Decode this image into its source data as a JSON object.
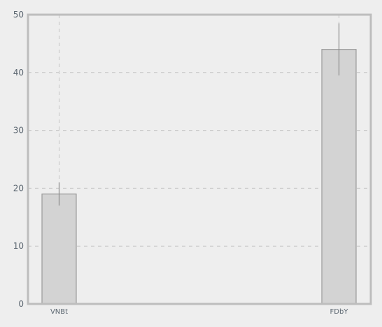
{
  "chart_data": {
    "type": "bar",
    "categories": [
      "VNBt",
      "FDbY"
    ],
    "values": [
      19,
      44
    ],
    "error": [
      [
        17,
        21
      ],
      [
        39.5,
        48.5
      ]
    ],
    "ylim": [
      0,
      50
    ],
    "yticks": [
      0,
      10,
      20,
      30,
      40,
      50
    ],
    "grid": true,
    "colors": {
      "bar_fill": "#d3d3d3",
      "bar_stroke": "#9a9a9a",
      "error": "#8a8a8a",
      "grid": "#c4c4c4",
      "frame": "#bdbdbd",
      "background": "#eeeeee"
    }
  }
}
